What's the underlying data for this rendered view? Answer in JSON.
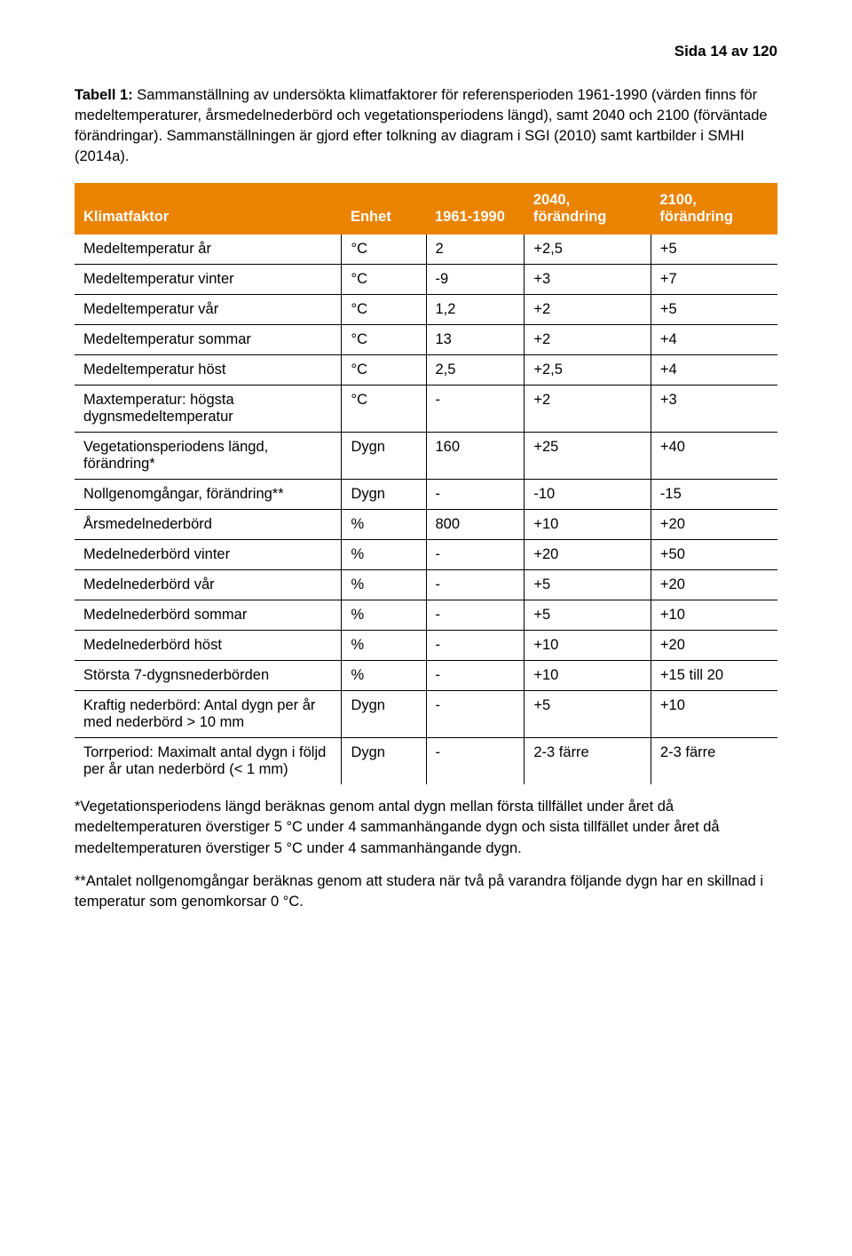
{
  "page_header": "Sida 14 av 120",
  "caption_label": "Tabell 1:",
  "caption_text": " Sammanställning av undersökta klimatfaktorer för referensperioden 1961-1990 (värden finns för medeltemperaturer, årsmedelnederbörd och vegetationsperiodens längd), samt 2040 och 2100 (förväntade förändringar). Sammanställningen är gjord efter tolkning av diagram i SGI (2010) samt kartbilder i SMHI (2014a).",
  "table": {
    "type": "table",
    "header_bg": "#e98300",
    "header_text_color": "#ffffff",
    "border_color": "#000000",
    "font_size": 16.5,
    "columns": [
      "Klimatfaktor",
      "Enhet",
      "1961-1990",
      "2040, förändring",
      "2100, förändring"
    ],
    "rows": [
      [
        "Medeltemperatur år",
        "°C",
        "2",
        "+2,5",
        "+5"
      ],
      [
        "Medeltemperatur vinter",
        "°C",
        "-9",
        "+3",
        "+7"
      ],
      [
        "Medeltemperatur vår",
        "°C",
        "1,2",
        "+2",
        "+5"
      ],
      [
        "Medeltemperatur sommar",
        "°C",
        "13",
        "+2",
        "+4"
      ],
      [
        "Medeltemperatur höst",
        "°C",
        "2,5",
        "+2,5",
        "+4"
      ],
      [
        "Maxtemperatur: högsta dygnsmedeltemperatur",
        "°C",
        "-",
        "+2",
        "+3"
      ],
      [
        "Vegetationsperiodens längd, förändring*",
        "Dygn",
        "160",
        "+25",
        "+40"
      ],
      [
        "Nollgenomgångar, förändring**",
        "Dygn",
        "-",
        "-10",
        "-15"
      ],
      [
        "Årsmedelnederbörd",
        "%",
        "800",
        "+10",
        "+20"
      ],
      [
        "Medelnederbörd vinter",
        "%",
        "-",
        "+20",
        "+50"
      ],
      [
        "Medelnederbörd vår",
        "%",
        "-",
        "+5",
        "+20"
      ],
      [
        "Medelnederbörd sommar",
        "%",
        "-",
        "+5",
        "+10"
      ],
      [
        "Medelnederbörd höst",
        "%",
        "-",
        "+10",
        "+20"
      ],
      [
        "Största 7-dygnsnederbörden",
        "%",
        "-",
        "+10",
        "+15 till 20"
      ],
      [
        "Kraftig nederbörd: Antal dygn per år med nederbörd > 10 mm",
        "Dygn",
        "-",
        "+5",
        "+10"
      ],
      [
        "Torrperiod: Maximalt antal dygn i följd per år utan nederbörd (< 1 mm)",
        "Dygn",
        "-",
        "2-3  färre",
        "2-3 färre"
      ]
    ]
  },
  "footnote1": "*Vegetationsperiodens längd beräknas genom antal dygn mellan första tillfället under året då medeltemperaturen överstiger 5 °C under 4 sammanhängande dygn och sista tillfället under året då medeltemperaturen överstiger 5 °C under 4 sammanhängande dygn.",
  "footnote2": "**Antalet nollgenomgångar beräknas genom att studera när två på varandra följande dygn har en skillnad i temperatur som genomkorsar 0 °C."
}
